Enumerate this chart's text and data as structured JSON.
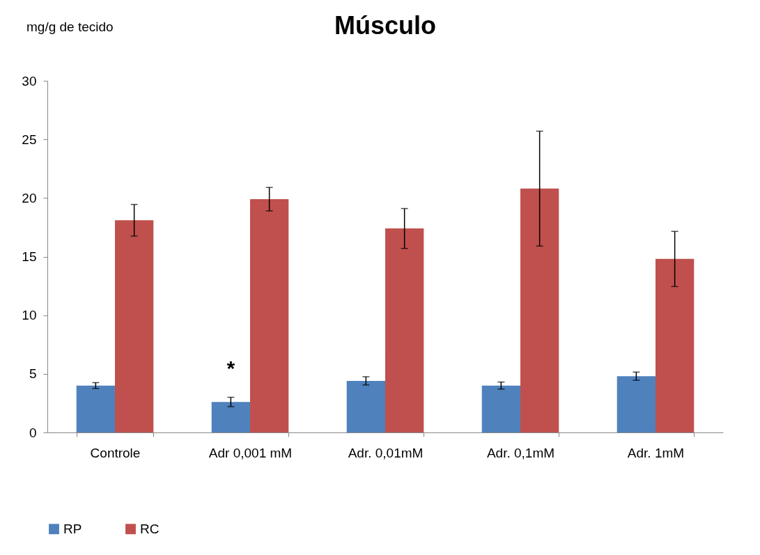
{
  "chart_data": {
    "type": "bar",
    "title": "Músculo",
    "ylabel": "mg/g de tecido",
    "categories": [
      "Controle",
      "Adr 0,001 mM",
      "Adr. 0,01mM",
      "Adr. 0,1mM",
      "Adr. 1mM"
    ],
    "series": [
      {
        "name": "RP",
        "color": "#4f81bd",
        "values": [
          4.0,
          2.6,
          4.4,
          4.0,
          4.8
        ],
        "errors": [
          0.25,
          0.4,
          0.35,
          0.3,
          0.35
        ]
      },
      {
        "name": "RC",
        "color": "#c0504d",
        "values": [
          18.1,
          19.9,
          17.4,
          20.8,
          14.8
        ],
        "errors": [
          1.35,
          1.0,
          1.7,
          4.9,
          2.35
        ]
      }
    ],
    "ylim": [
      0,
      30
    ],
    "yticks": [
      0,
      5,
      10,
      15,
      20,
      25,
      30
    ],
    "grid": false,
    "legend": "bottom",
    "annotations": [
      {
        "text": "*",
        "x": "Adr 0,001 mM",
        "y": 5.6
      }
    ]
  }
}
